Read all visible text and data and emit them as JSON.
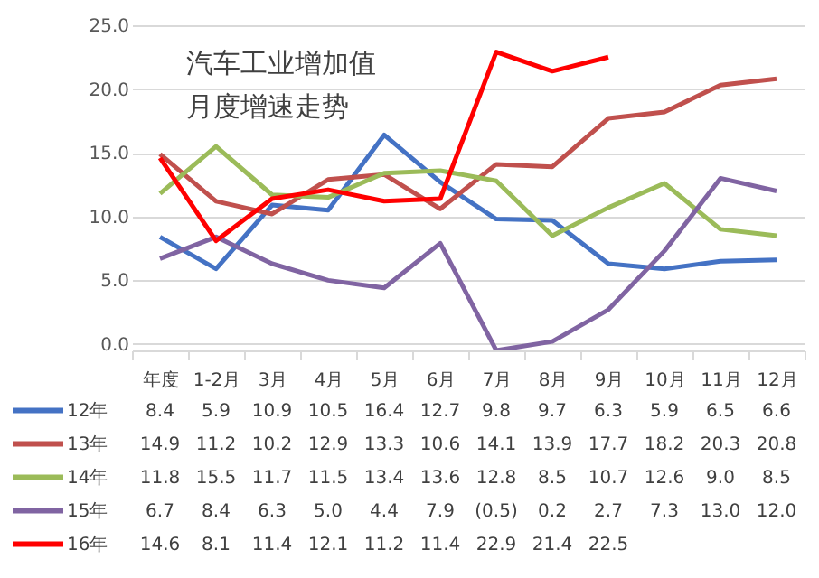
{
  "chart_data": {
    "type": "line",
    "title": "汽车工业增加值月度增速走势",
    "categories": [
      "年度",
      "1-2月",
      "3月",
      "4月",
      "5月",
      "6月",
      "7月",
      "8月",
      "9月",
      "10月",
      "11月",
      "12月"
    ],
    "series": [
      {
        "name": "12年",
        "color": "#4472c4",
        "values": [
          8.4,
          5.9,
          10.9,
          10.5,
          16.4,
          12.7,
          9.8,
          9.7,
          6.3,
          5.9,
          6.5,
          6.6
        ],
        "value_labels": [
          "8.4",
          "5.9",
          "10.9",
          "10.5",
          "16.4",
          "12.7",
          "9.8",
          "9.7",
          "6.3",
          "5.9",
          "6.5",
          "6.6"
        ]
      },
      {
        "name": "13年",
        "color": "#c0504d",
        "values": [
          14.9,
          11.2,
          10.2,
          12.9,
          13.3,
          10.6,
          14.1,
          13.9,
          17.7,
          18.2,
          20.3,
          20.8
        ],
        "value_labels": [
          "14.9",
          "11.2",
          "10.2",
          "12.9",
          "13.3",
          "10.6",
          "14.1",
          "13.9",
          "17.7",
          "18.2",
          "20.3",
          "20.8"
        ]
      },
      {
        "name": "14年",
        "color": "#9bbb59",
        "values": [
          11.8,
          15.5,
          11.7,
          11.5,
          13.4,
          13.6,
          12.8,
          8.5,
          10.7,
          12.6,
          9.0,
          8.5
        ],
        "value_labels": [
          "11.8",
          "15.5",
          "11.7",
          "11.5",
          "13.4",
          "13.6",
          "12.8",
          "8.5",
          "10.7",
          "12.6",
          "9.0",
          "8.5"
        ]
      },
      {
        "name": "15年",
        "color": "#8064a2",
        "values": [
          6.7,
          8.4,
          6.3,
          5.0,
          4.4,
          7.9,
          -0.5,
          0.2,
          2.7,
          7.3,
          13.0,
          12.0
        ],
        "value_labels": [
          "6.7",
          "8.4",
          "6.3",
          "5.0",
          "4.4",
          "7.9",
          "(0.5)",
          "0.2",
          "2.7",
          "7.3",
          "13.0",
          "12.0"
        ]
      },
      {
        "name": "16年",
        "color": "#ff0000",
        "values": [
          14.6,
          8.1,
          11.4,
          12.1,
          11.2,
          11.4,
          22.9,
          21.4,
          22.5,
          null,
          null,
          null
        ],
        "value_labels": [
          "14.6",
          "8.1",
          "11.4",
          "12.1",
          "11.2",
          "11.4",
          "22.9",
          "21.4",
          "22.5",
          null,
          null,
          null
        ]
      }
    ],
    "ylim": [
      -0.5,
      25
    ],
    "yticks": [
      {
        "value": 0,
        "label": "0.0"
      },
      {
        "value": 5,
        "label": "5.0"
      },
      {
        "value": 10,
        "label": "10.0"
      },
      {
        "value": 15,
        "label": "15.0"
      },
      {
        "value": 20,
        "label": "20.0"
      },
      {
        "value": 25,
        "label": "25.0"
      }
    ],
    "grid": "y",
    "legend": "bottom"
  }
}
